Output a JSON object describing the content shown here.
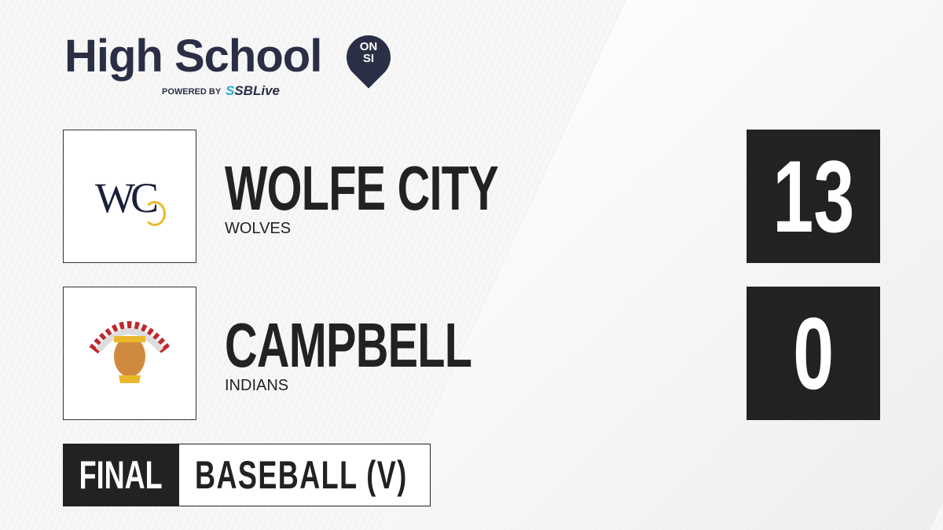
{
  "brand": {
    "title": "High School",
    "badge_top": "ON",
    "badge_bottom": "SI",
    "powered_by": "POWERED BY",
    "partner_prefix": "S",
    "partner": "SBLive",
    "partner_color": "#2aa8e0",
    "brand_color": "#2b2f45"
  },
  "teams": [
    {
      "name": "WOLFE CITY",
      "mascot": "WOLVES",
      "score": "13",
      "logo": "WC"
    },
    {
      "name": "CAMPBELL",
      "mascot": "INDIANS",
      "score": "0",
      "logo": "indian-chief-logo"
    }
  ],
  "status": "FINAL",
  "sport": "BASEBALL (V)"
}
